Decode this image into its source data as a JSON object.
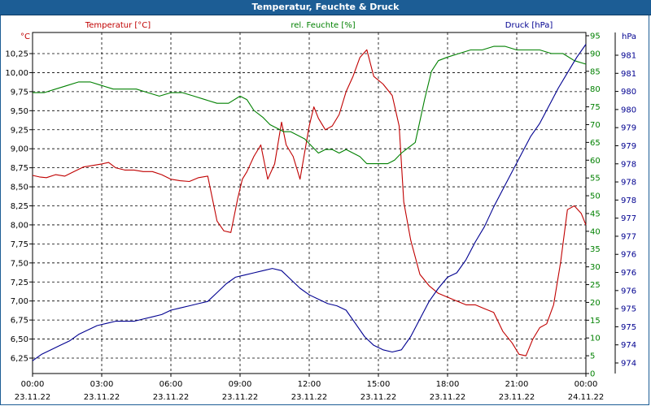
{
  "window": {
    "title": "Temperatur, Feuchte & Druck"
  },
  "colors": {
    "temperature": "#c00000",
    "humidity": "#008000",
    "pressure": "#000090",
    "title_bg": "#1c5d95"
  },
  "chart_data": {
    "type": "line",
    "title": "Temperatur, Feuchte & Druck",
    "legend": {
      "temperature": "Temperatur [°C]",
      "humidity": "rel. Feuchte [%]",
      "pressure": "Druck [hPa]"
    },
    "axes": {
      "temperature": {
        "unit": "°C",
        "range": [
          6.25,
          10.25
        ],
        "ticks": [
          "6,25",
          "6,50",
          "6,75",
          "7,00",
          "7,25",
          "7,50",
          "7,75",
          "8,00",
          "8,25",
          "8,50",
          "8,75",
          "9,00",
          "9,25",
          "9,50",
          "9,75",
          "10,00",
          "10,25"
        ]
      },
      "humidity": {
        "unit": "%",
        "range": [
          0,
          95
        ],
        "ticks": [
          "0",
          "5",
          "10",
          "15",
          "20",
          "25",
          "30",
          "35",
          "40",
          "45",
          "50",
          "55",
          "60",
          "65",
          "70",
          "75",
          "80",
          "85",
          "90",
          "95"
        ]
      },
      "pressure": {
        "unit": "hPa",
        "range": [
          974,
          981
        ],
        "ticks": [
          "974",
          "974",
          "975",
          "975",
          "976",
          "976",
          "976",
          "977",
          "977",
          "978",
          "978",
          "978",
          "979",
          "979",
          "980",
          "980",
          "981",
          "981"
        ]
      }
    },
    "x_range_hours": [
      0,
      24
    ],
    "x_ticks": [
      {
        "time": "00:00",
        "date": "23.11.22"
      },
      {
        "time": "03:00",
        "date": "23.11.22"
      },
      {
        "time": "06:00",
        "date": "23.11.22"
      },
      {
        "time": "09:00",
        "date": "23.11.22"
      },
      {
        "time": "12:00",
        "date": "23.11.22"
      },
      {
        "time": "15:00",
        "date": "23.11.22"
      },
      {
        "time": "18:00",
        "date": "23.11.22"
      },
      {
        "time": "21:00",
        "date": "23.11.22"
      },
      {
        "time": "00:00",
        "date": "24.11.22"
      }
    ],
    "series": [
      {
        "name": "Temperatur [°C]",
        "axis": "temperature",
        "x": [
          0,
          0.3,
          0.6,
          1,
          1.4,
          1.8,
          2.2,
          2.6,
          3,
          3.3,
          3.6,
          4,
          4.4,
          4.8,
          5.2,
          5.6,
          6,
          6.4,
          6.8,
          7.2,
          7.6,
          8,
          8.3,
          8.6,
          8.9,
          9.1,
          9.3,
          9.6,
          9.9,
          10.2,
          10.5,
          10.8,
          11,
          11.3,
          11.6,
          12,
          12.2,
          12.4,
          12.7,
          13,
          13.3,
          13.6,
          13.9,
          14.2,
          14.5,
          14.8,
          15.2,
          15.6,
          15.9,
          16.1,
          16.4,
          16.8,
          17.2,
          17.6,
          18,
          18.4,
          18.8,
          19.2,
          19.6,
          20,
          20.4,
          20.8,
          21.1,
          21.4,
          21.7,
          22,
          22.3,
          22.6,
          22.9,
          23.2,
          23.5,
          23.8,
          24
        ],
        "values": [
          8.65,
          8.63,
          8.62,
          8.66,
          8.64,
          8.7,
          8.76,
          8.78,
          8.8,
          8.82,
          8.75,
          8.72,
          8.72,
          8.7,
          8.7,
          8.66,
          8.6,
          8.58,
          8.57,
          8.62,
          8.64,
          8.05,
          7.92,
          7.9,
          8.35,
          8.6,
          8.7,
          8.9,
          9.05,
          8.6,
          8.8,
          9.35,
          9.05,
          8.9,
          8.6,
          9.3,
          9.55,
          9.4,
          9.25,
          9.3,
          9.45,
          9.75,
          9.95,
          10.2,
          10.3,
          9.95,
          9.85,
          9.7,
          9.3,
          8.3,
          7.8,
          7.35,
          7.2,
          7.1,
          7.05,
          7.0,
          6.95,
          6.95,
          6.9,
          6.85,
          6.6,
          6.45,
          6.3,
          6.28,
          6.5,
          6.65,
          6.7,
          6.95,
          7.5,
          8.2,
          8.25,
          8.15,
          8.0
        ]
      },
      {
        "name": "rel. Feuchte [%]",
        "axis": "humidity",
        "x": [
          0,
          0.5,
          1,
          1.5,
          2,
          2.5,
          3,
          3.5,
          4,
          4.5,
          5,
          5.5,
          6,
          6.5,
          7,
          7.5,
          8,
          8.5,
          9,
          9.3,
          9.6,
          10,
          10.3,
          10.6,
          10.9,
          11.2,
          11.5,
          11.8,
          12.1,
          12.4,
          12.7,
          13,
          13.3,
          13.6,
          13.9,
          14.2,
          14.5,
          14.8,
          15.1,
          15.4,
          15.7,
          16,
          16.2,
          16.4,
          16.6,
          16.8,
          17,
          17.3,
          17.6,
          18,
          18.5,
          19,
          19.5,
          20,
          20.5,
          21,
          21.5,
          22,
          22.5,
          23,
          23.5,
          24
        ],
        "values": [
          79,
          79,
          80,
          81,
          82,
          82,
          81,
          80,
          80,
          80,
          79,
          78,
          79,
          79,
          78,
          77,
          76,
          76,
          78,
          77,
          74,
          72,
          70,
          69,
          68,
          68,
          67,
          66,
          64,
          62,
          63,
          63,
          62,
          63,
          62,
          61,
          59,
          59,
          59,
          59,
          60,
          62,
          63,
          64,
          65,
          71,
          77,
          85,
          88,
          89,
          90,
          91,
          91,
          92,
          92,
          91,
          91,
          91,
          90,
          90,
          88,
          87
        ]
      },
      {
        "name": "Druck [hPa]",
        "axis": "pressure",
        "x": [
          0,
          0.4,
          0.8,
          1.2,
          1.6,
          2,
          2.4,
          2.8,
          3.2,
          3.6,
          4,
          4.4,
          4.8,
          5.2,
          5.6,
          6,
          6.4,
          6.8,
          7.2,
          7.6,
          8,
          8.4,
          8.8,
          9.2,
          9.6,
          10,
          10.4,
          10.8,
          11.2,
          11.6,
          12,
          12.4,
          12.8,
          13.2,
          13.6,
          14,
          14.4,
          14.8,
          15.2,
          15.6,
          16,
          16.4,
          16.8,
          17.2,
          17.6,
          18,
          18.4,
          18.8,
          19.2,
          19.6,
          20,
          20.4,
          20.8,
          21.2,
          21.6,
          22,
          22.4,
          22.8,
          23.2,
          23.6,
          24
        ],
        "values": [
          974.05,
          974.2,
          974.3,
          974.4,
          974.5,
          974.65,
          974.75,
          974.85,
          974.9,
          974.95,
          974.95,
          974.95,
          975.0,
          975.05,
          975.1,
          975.2,
          975.25,
          975.3,
          975.35,
          975.4,
          975.6,
          975.8,
          975.95,
          976.0,
          976.05,
          976.1,
          976.15,
          976.1,
          975.9,
          975.7,
          975.55,
          975.45,
          975.35,
          975.3,
          975.2,
          974.9,
          974.6,
          974.4,
          974.3,
          974.25,
          974.3,
          974.6,
          975.0,
          975.4,
          975.7,
          975.95,
          976.05,
          976.35,
          976.75,
          977.1,
          977.55,
          977.95,
          978.35,
          978.75,
          979.15,
          979.45,
          979.85,
          980.25,
          980.6,
          980.95,
          981.25
        ]
      }
    ]
  }
}
